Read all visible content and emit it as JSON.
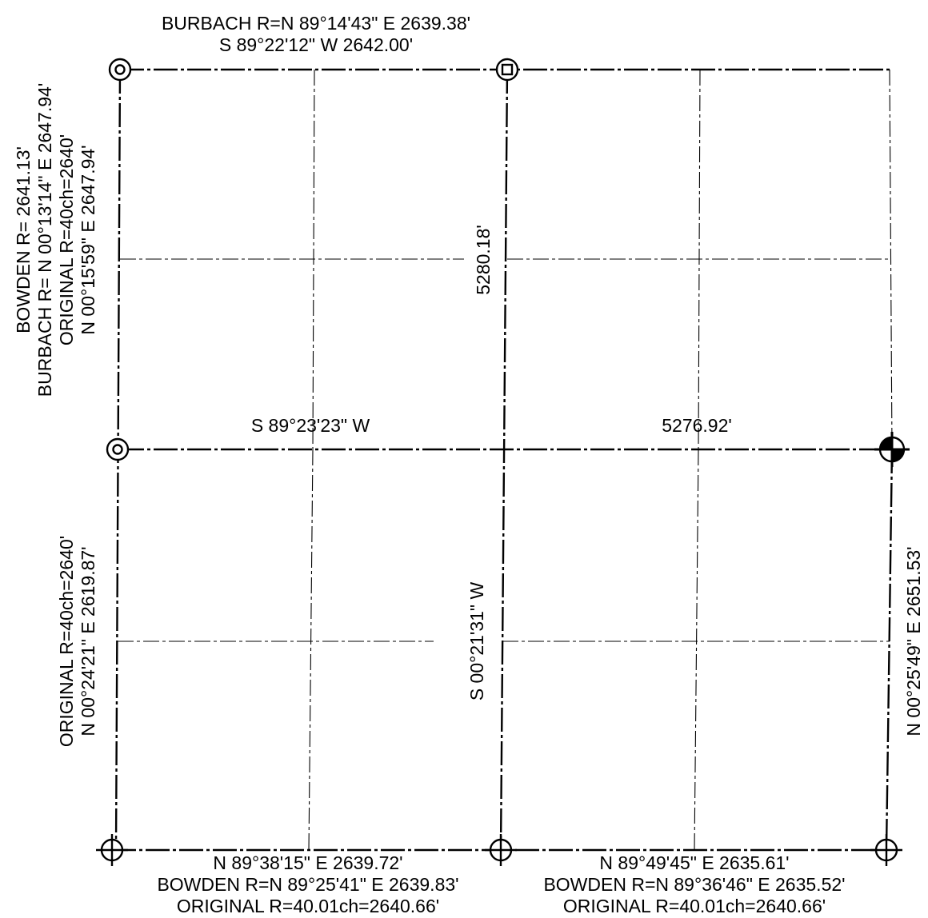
{
  "labels": {
    "north_1": "BURBACH R=N 89°14'43\" E 2639.38'",
    "north_2": "S 89°22'12\" W 2642.00'",
    "west_upper_1": "BOWDEN R= 2641.13'",
    "west_upper_2": "BURBACH R= N 00°13'14\" E 2647.94'",
    "west_upper_3": "ORIGINAL R=40ch=2640'",
    "west_upper_4": "N 00°15'59\" E 2647.94'",
    "center_upper": "5280.18'",
    "middle_west": "S 89°23'23\" W",
    "middle_east": "5276.92'",
    "west_lower_1": "ORIGINAL R=40ch=2640'",
    "west_lower_2": "N 00°24'21\" E 2619.87'",
    "center_lower": "S 00°21'31\" W",
    "east_lower": "N 00°25'49\" E 2651.53'",
    "south_west_1": "N 89°38'15\" E 2639.72'",
    "south_west_2": "BOWDEN R=N 89°25'41\" E 2639.83'",
    "south_west_3": "ORIGINAL R=40.01ch=2640.66'",
    "south_east_1": "N 89°49'45\" E 2635.61'",
    "south_east_2": "BOWDEN R=N 89°36'46\" E 2635.52'",
    "south_east_3": "ORIGINAL R=40.01ch=2640.66'"
  },
  "monuments": {
    "nw_corner": "double-circle-icon",
    "north_quarter": "square-in-circle-icon",
    "west_quarter": "double-circle-icon",
    "east_quarter": "quartered-filled-circle-icon",
    "sw_corner": "crossed-circle-icon",
    "south_quarter": "crossed-circle-icon",
    "se_corner": "crossed-circle-icon"
  }
}
